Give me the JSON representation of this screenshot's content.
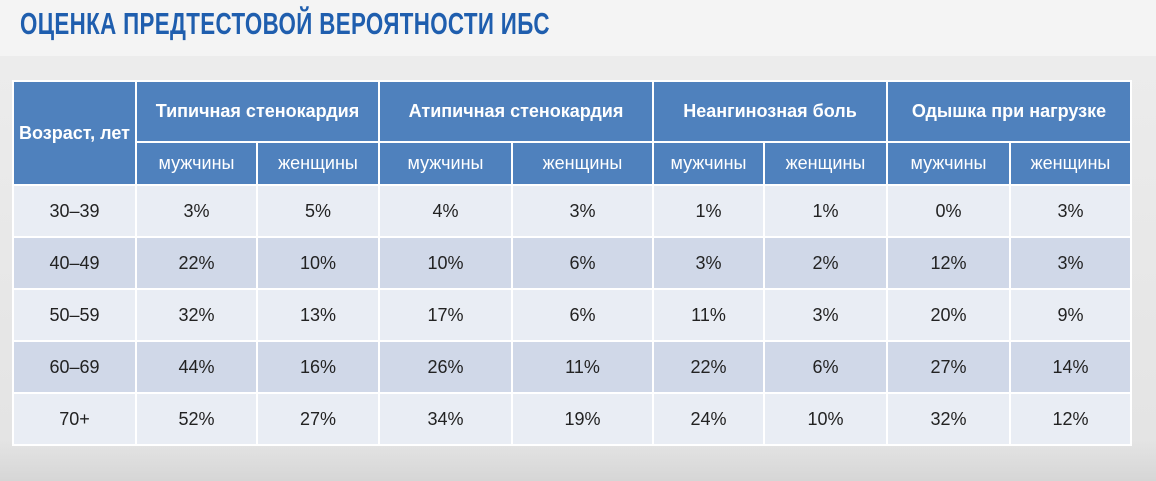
{
  "title": "Оценка предтестовой вероятности ИБС",
  "table": {
    "age_header": "Возраст, лет",
    "groups": [
      "Типичная стенокардия",
      "Атипичная стенокардия",
      "Неангинозная боль",
      "Одышка при нагрузке"
    ],
    "subheaders": [
      "мужчины",
      "женщины",
      "мужчины",
      "женщины",
      "мужчины",
      "женщины",
      "мужчины",
      "женщины"
    ],
    "rows": [
      [
        "30–39",
        "3%",
        "5%",
        "4%",
        "3%",
        "1%",
        "1%",
        "0%",
        "3%"
      ],
      [
        "40–49",
        "22%",
        "10%",
        "10%",
        "6%",
        "3%",
        "2%",
        "12%",
        "3%"
      ],
      [
        "50–59",
        "32%",
        "13%",
        "17%",
        "6%",
        "11%",
        "3%",
        "20%",
        "9%"
      ],
      [
        "60–69",
        "44%",
        "16%",
        "26%",
        "11%",
        "22%",
        "6%",
        "27%",
        "14%"
      ],
      [
        "70+",
        "52%",
        "27%",
        "34%",
        "19%",
        "24%",
        "10%",
        "32%",
        "12%"
      ]
    ]
  }
}
